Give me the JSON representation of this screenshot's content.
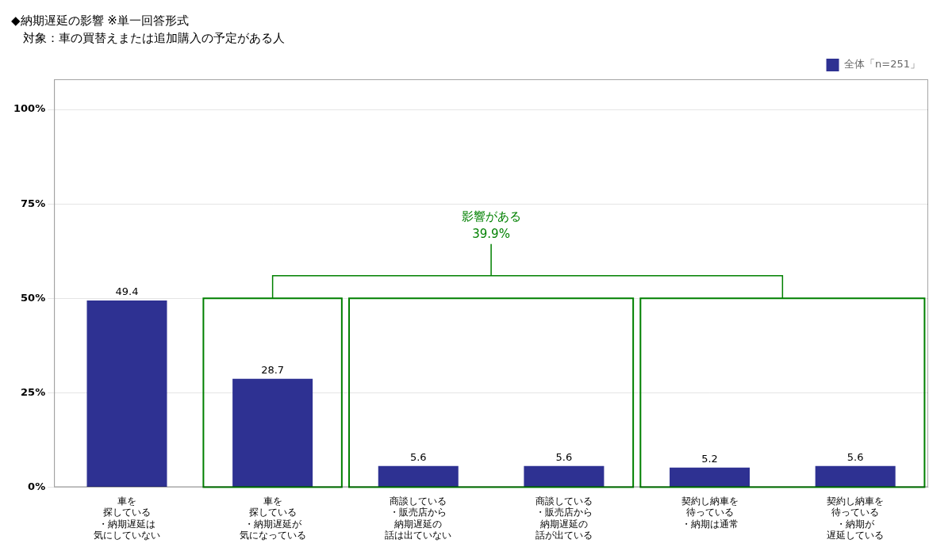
{
  "chart_data": {
    "type": "bar",
    "title": "◆納期遅延の影響 ※単一回答形式",
    "subtitle": "　対象：車の買替えまたは追加購入の予定がある人",
    "categories": [
      "車を\n探している\n・納期遅延は\n気にしていない",
      "車を\n探している\n・納期遅延が\n気になっている",
      "商談している\n・販売店から\n納期遅延の\n話は出ていない",
      "商談している\n・販売店から\n納期遅延の\n話が出ている",
      "契約し納車を\n待っている\n・納期は通常",
      "契約し納車を\n待っている\n・納期が\n遅延している"
    ],
    "series": [
      {
        "name": "全体「n=251」",
        "color": "#2e3192",
        "values": [
          49.4,
          28.7,
          5.6,
          5.6,
          5.2,
          5.6
        ]
      }
    ],
    "ylim": [
      0,
      108
    ],
    "yticks": [
      {
        "value": 0,
        "label": "0%"
      },
      {
        "value": 25,
        "label": "25%"
      },
      {
        "value": 50,
        "label": "50%"
      },
      {
        "value": 75,
        "label": "75%"
      },
      {
        "value": 100,
        "label": "100%"
      }
    ],
    "grid": true,
    "legend": "upper right",
    "data_labels": true,
    "annotations": [
      {
        "text": "影響がある",
        "value": 39.9,
        "value_label": "39.9%",
        "groups": [
          [
            1
          ],
          [
            2,
            3
          ],
          [
            4,
            5
          ]
        ],
        "box_top": 50,
        "bracket_top": 56,
        "color": "#008000"
      }
    ]
  }
}
